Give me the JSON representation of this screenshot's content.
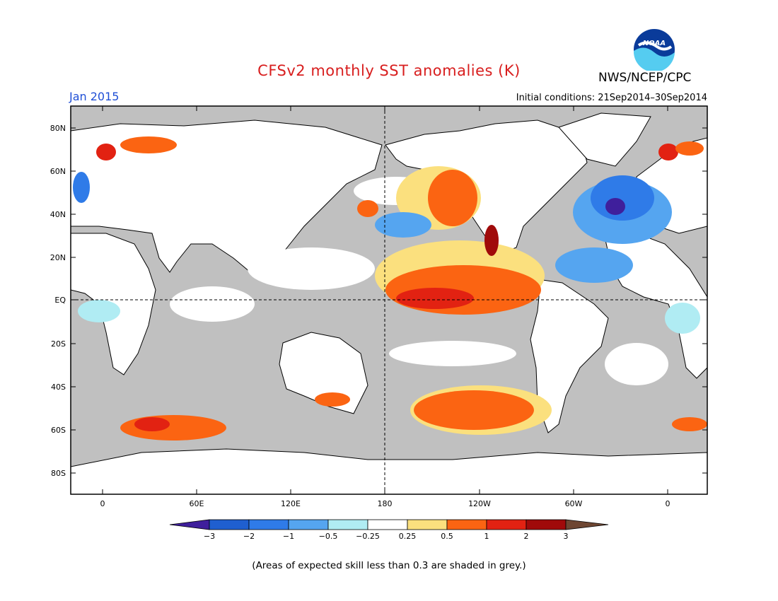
{
  "title": "CFSv2 monthly SST anomalies (K)",
  "organization": "NWS/NCEP/CPC",
  "logo_text": "NOAA",
  "month": "Jan 2015",
  "initial_conditions": "Initial conditions: 21Sep2014–30Sep2014",
  "footnote": "(Areas of expected skill less than 0.3 are shaded in grey.)",
  "map": {
    "lat_labels": [
      "80N",
      "60N",
      "40N",
      "20N",
      "EQ",
      "20S",
      "40S",
      "60S",
      "80S"
    ],
    "lon_labels": [
      "0",
      "60E",
      "120E",
      "180",
      "120W",
      "60W",
      "0"
    ],
    "colors": {
      "land": "#ffffff",
      "low_skill": "#c0c0c0",
      "coast": "#000000"
    }
  },
  "colorbar": {
    "labels": [
      "−3",
      "−2",
      "−1",
      "−0.5",
      "−0.25",
      "0.25",
      "0.5",
      "1",
      "2",
      "3"
    ],
    "colors": [
      "#3f1f9c",
      "#1f5fd0",
      "#2f7be8",
      "#55a5f0",
      "#b0ecf3",
      "#ffffff",
      "#fbe07e",
      "#fb6412",
      "#e22212",
      "#a00a0a",
      "#6e4632"
    ]
  }
}
